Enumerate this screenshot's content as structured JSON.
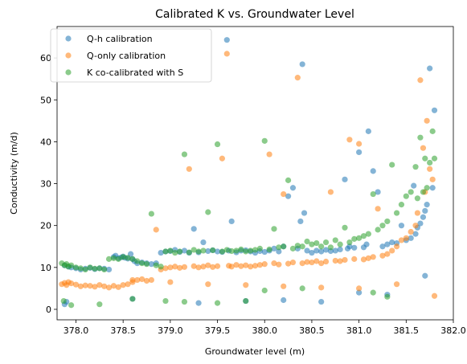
{
  "chart_data": {
    "type": "scatter",
    "title": "Calibrated K vs. Groundwater Level",
    "xlabel": "Groundwater level (m)",
    "ylabel": "Conductivity (m/d)",
    "xlim": [
      377.8,
      382.0
    ],
    "ylim": [
      -2.5,
      67.5
    ],
    "xticks": [
      378.0,
      378.5,
      379.0,
      379.5,
      380.0,
      380.5,
      381.0,
      381.5,
      382.0
    ],
    "yticks": [
      0,
      10,
      20,
      30,
      40,
      50,
      60
    ],
    "grid": false,
    "legend": "top-left",
    "series": [
      {
        "name": "Q-h calibration",
        "color": "#1f77b4",
        "x": [
          377.88,
          377.9,
          377.92,
          377.95,
          378.0,
          378.05,
          378.1,
          378.15,
          378.2,
          378.25,
          378.3,
          378.35,
          378.4,
          378.42,
          378.45,
          378.48,
          378.5,
          378.52,
          378.55,
          378.58,
          378.6,
          378.62,
          378.65,
          378.7,
          378.75,
          378.8,
          378.85,
          378.9,
          378.95,
          379.0,
          379.05,
          379.1,
          379.15,
          379.2,
          379.25,
          379.3,
          379.35,
          379.4,
          379.45,
          379.5,
          379.55,
          379.6,
          379.62,
          379.65,
          379.7,
          379.75,
          379.8,
          379.85,
          379.9,
          379.95,
          380.0,
          380.05,
          380.1,
          380.15,
          380.2,
          380.25,
          380.3,
          380.35,
          380.38,
          380.4,
          380.42,
          380.45,
          380.5,
          380.55,
          380.6,
          380.65,
          380.7,
          380.75,
          380.8,
          380.85,
          380.88,
          380.9,
          380.95,
          381.0,
          381.05,
          381.08,
          381.1,
          381.15,
          381.2,
          381.25,
          381.3,
          381.35,
          381.4,
          381.45,
          381.5,
          381.55,
          381.58,
          381.6,
          381.62,
          381.65,
          381.68,
          381.7,
          381.72,
          381.75,
          381.78,
          381.8,
          377.88,
          378.6,
          379.3,
          379.8,
          380.2,
          380.6,
          381.0,
          381.3,
          381.7
        ],
        "y": [
          10.5,
          1.8,
          10.2,
          10.0,
          9.8,
          9.5,
          9.7,
          9.9,
          9.6,
          9.8,
          9.7,
          9.5,
          12.5,
          12.8,
          12.2,
          12.4,
          12.6,
          12.3,
          12.1,
          13.2,
          12.0,
          11.5,
          11.0,
          11.2,
          11.0,
          10.8,
          11.0,
          13.5,
          13.8,
          13.9,
          14.2,
          13.7,
          14.0,
          13.5,
          19.2,
          13.6,
          16.0,
          13.9,
          14.1,
          13.8,
          13.7,
          64.3,
          14.0,
          21.0,
          13.6,
          14.0,
          14.1,
          13.8,
          13.5,
          13.9,
          13.7,
          14.0,
          14.5,
          13.8,
          15.0,
          27.0,
          29.0,
          14.5,
          21.0,
          58.5,
          23.0,
          14.0,
          13.5,
          14.0,
          13.8,
          14.2,
          13.9,
          14.0,
          14.3,
          31.0,
          14.5,
          15.0,
          14.7,
          37.5,
          14.8,
          15.5,
          42.5,
          33.0,
          28.0,
          15.0,
          15.5,
          16.0,
          15.8,
          20.0,
          16.5,
          17.0,
          29.5,
          18.0,
          19.5,
          20.5,
          22.0,
          23.5,
          25.0,
          57.5,
          29.0,
          47.5,
          1.2,
          2.5,
          1.5,
          2.0,
          2.2,
          1.8,
          4.0,
          3.5,
          8.0
        ]
      },
      {
        "name": "Q-only calibration",
        "color": "#ff7f0e",
        "x": [
          377.85,
          377.88,
          377.9,
          377.92,
          377.95,
          378.0,
          378.05,
          378.1,
          378.15,
          378.2,
          378.25,
          378.3,
          378.35,
          378.4,
          378.45,
          378.5,
          378.55,
          378.6,
          378.65,
          378.7,
          378.75,
          378.8,
          378.85,
          378.9,
          378.95,
          379.0,
          379.05,
          379.1,
          379.15,
          379.2,
          379.25,
          379.3,
          379.35,
          379.4,
          379.45,
          379.5,
          379.55,
          379.6,
          379.62,
          379.65,
          379.7,
          379.75,
          379.8,
          379.85,
          379.9,
          379.95,
          380.0,
          380.05,
          380.1,
          380.15,
          380.2,
          380.25,
          380.3,
          380.35,
          380.4,
          380.45,
          380.5,
          380.55,
          380.6,
          380.65,
          380.7,
          380.75,
          380.8,
          380.85,
          380.9,
          380.95,
          381.0,
          381.05,
          381.1,
          381.15,
          381.2,
          381.25,
          381.3,
          381.35,
          381.4,
          381.45,
          381.5,
          381.55,
          381.6,
          381.62,
          381.65,
          381.68,
          381.7,
          381.72,
          381.75,
          381.78,
          381.8,
          378.6,
          379.0,
          379.4,
          379.8,
          380.2,
          380.6,
          381.0,
          381.4
        ],
        "y": [
          6.0,
          6.3,
          5.8,
          6.5,
          6.2,
          5.9,
          5.5,
          5.7,
          5.6,
          5.4,
          5.8,
          5.5,
          5.2,
          5.6,
          5.3,
          5.8,
          6.0,
          6.5,
          7.0,
          7.2,
          6.8,
          7.0,
          19.0,
          9.5,
          9.8,
          10.0,
          10.2,
          9.9,
          10.1,
          33.5,
          10.3,
          10.0,
          10.2,
          10.5,
          10.1,
          10.3,
          36.0,
          61.0,
          10.4,
          10.2,
          10.6,
          10.3,
          10.5,
          10.2,
          10.4,
          10.6,
          10.8,
          37.0,
          11.0,
          10.7,
          27.5,
          10.9,
          11.2,
          55.3,
          11.0,
          11.3,
          11.2,
          11.5,
          11.0,
          11.4,
          28.0,
          11.6,
          11.5,
          11.8,
          40.5,
          12.0,
          39.5,
          11.9,
          12.2,
          12.5,
          24.0,
          12.8,
          13.2,
          14.0,
          15.0,
          16.5,
          17.0,
          18.5,
          20.0,
          23.0,
          54.7,
          38.5,
          28.0,
          45.0,
          33.5,
          31.0,
          3.2,
          7.0,
          6.5,
          6.0,
          5.8,
          5.5,
          5.2,
          5.0,
          6.0
        ]
      },
      {
        "name": "K co-calibrated with S",
        "color": "#2ca02c",
        "x": [
          377.85,
          377.88,
          377.9,
          377.92,
          377.95,
          378.0,
          378.05,
          378.1,
          378.15,
          378.2,
          378.25,
          378.3,
          378.35,
          378.4,
          378.45,
          378.5,
          378.55,
          378.6,
          378.65,
          378.7,
          378.75,
          378.8,
          378.85,
          378.9,
          378.95,
          379.0,
          379.05,
          379.1,
          379.15,
          379.2,
          379.25,
          379.3,
          379.35,
          379.4,
          379.45,
          379.5,
          379.55,
          379.6,
          379.65,
          379.7,
          379.75,
          379.8,
          379.85,
          379.9,
          379.95,
          380.0,
          380.05,
          380.1,
          380.15,
          380.2,
          380.25,
          380.3,
          380.35,
          380.4,
          380.45,
          380.5,
          380.55,
          380.6,
          380.65,
          380.7,
          380.75,
          380.8,
          380.85,
          380.9,
          380.95,
          381.0,
          381.05,
          381.1,
          381.15,
          381.2,
          381.25,
          381.3,
          381.35,
          381.4,
          381.45,
          381.5,
          381.55,
          381.6,
          381.62,
          381.65,
          381.68,
          381.7,
          381.72,
          381.75,
          381.78,
          381.8,
          377.87,
          377.95,
          378.25,
          378.6,
          378.95,
          379.15,
          379.5,
          379.8,
          380.0,
          380.4,
          381.15,
          381.3
        ],
        "y": [
          11.0,
          10.5,
          10.8,
          10.2,
          10.5,
          10.0,
          9.8,
          9.5,
          10.0,
          9.7,
          9.8,
          9.5,
          12.0,
          12.2,
          12.0,
          12.5,
          12.3,
          12.0,
          11.5,
          11.0,
          10.8,
          22.8,
          10.5,
          10.2,
          13.8,
          14.0,
          13.5,
          13.8,
          37.0,
          13.6,
          14.2,
          13.8,
          14.0,
          23.2,
          14.1,
          39.4,
          13.8,
          14.2,
          13.9,
          14.0,
          14.3,
          13.8,
          14.0,
          14.2,
          14.5,
          40.2,
          14.3,
          19.2,
          14.8,
          15.0,
          30.8,
          14.5,
          15.2,
          15.0,
          16.2,
          15.5,
          15.8,
          15.0,
          16.0,
          14.8,
          16.5,
          15.5,
          19.5,
          16.0,
          16.8,
          17.0,
          17.5,
          18.0,
          27.5,
          19.0,
          20.0,
          21.0,
          34.5,
          23.0,
          25.0,
          27.0,
          28.0,
          34.0,
          26.5,
          41.0,
          28.0,
          36.0,
          29.0,
          35.0,
          42.5,
          36.0,
          2.0,
          1.0,
          1.2,
          2.5,
          2.0,
          1.8,
          1.5,
          2.0,
          4.5,
          5.0,
          4.0,
          3.0
        ]
      }
    ]
  }
}
